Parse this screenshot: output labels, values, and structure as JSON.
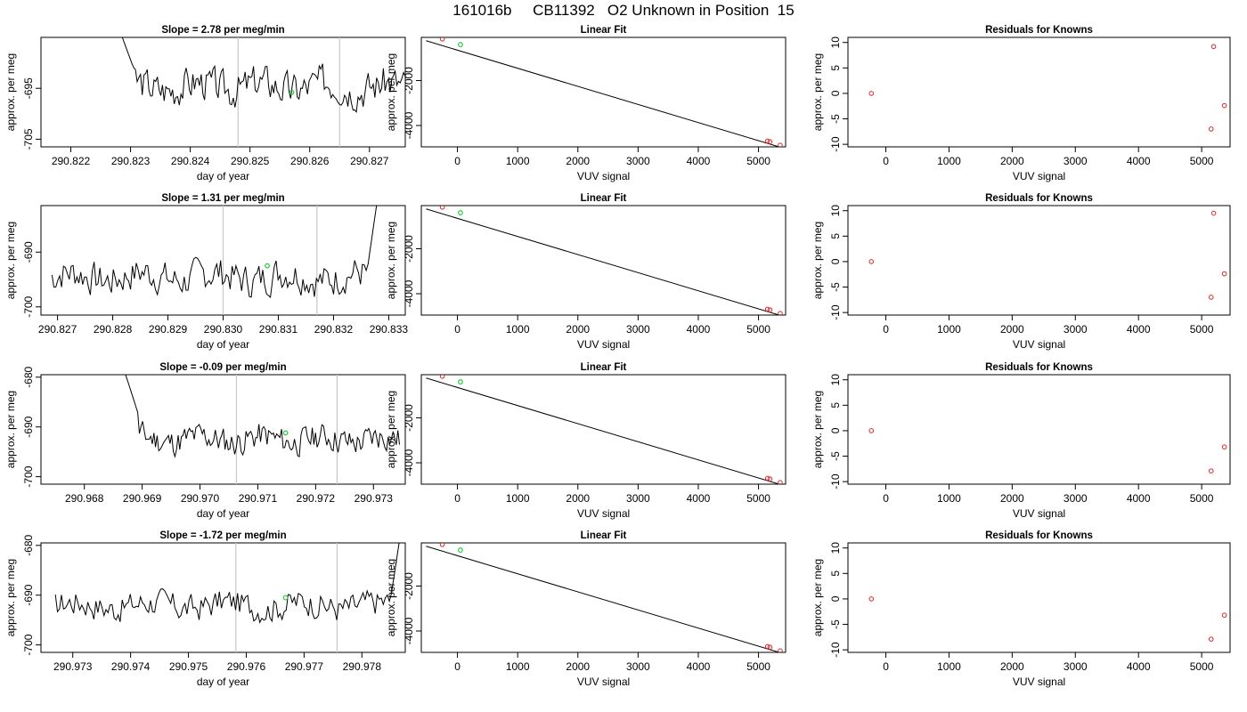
{
  "figure": {
    "title": "161016b     CB11392   O2 Unknown in Position  15"
  },
  "chart_data": [
    {
      "type": "line",
      "panel": "time",
      "title": "Slope =  2.78  per meg/min",
      "xlabel": "day of year",
      "ylabel": "approx. per meg",
      "xlim": [
        290.8215,
        290.8276
      ],
      "ylim": [
        -706.5,
        -685
      ],
      "xticks": [
        290.822,
        290.823,
        290.824,
        290.825,
        290.826,
        290.827
      ],
      "yticks": [
        -705,
        -695
      ],
      "vlines": [
        290.8248,
        290.8265
      ],
      "start": 290.8228,
      "end": 290.8276,
      "mean": -694.5,
      "amp": 2.2,
      "seed": 3,
      "spikes": [
        {
          "x0": 290.8228,
          "x1": 290.82305,
          "y0": -683,
          "y1": -691
        }
      ],
      "marker": {
        "x": 290.8257,
        "y": -695.8
      }
    },
    {
      "type": "scatter",
      "panel": "fit",
      "title": "Linear Fit",
      "xlabel": "VUV signal",
      "ylabel": "approx. per meg",
      "xlim": [
        -600,
        5450
      ],
      "ylim": [
        -4950,
        -80
      ],
      "xticks": [
        0,
        1000,
        2000,
        3000,
        4000,
        5000
      ],
      "yticks": [
        -4000,
        -2000
      ],
      "line": [
        [
          -520,
          -230
        ],
        [
          5380,
          -4980
        ]
      ],
      "points": [
        [
          -250,
          -150
        ],
        [
          5150,
          -4690
        ],
        [
          5190,
          -4720
        ],
        [
          5360,
          -4880
        ]
      ],
      "green": [
        [
          50,
          -400
        ]
      ]
    },
    {
      "type": "scatter",
      "panel": "resid",
      "title": "Residuals for Knowns",
      "xlabel": "VUV signal",
      "ylabel": "approx. per meg",
      "xlim": [
        -600,
        5450
      ],
      "ylim": [
        -10.5,
        11
      ],
      "xticks": [
        0,
        1000,
        2000,
        3000,
        4000,
        5000
      ],
      "yticks": [
        -10,
        -5,
        0,
        5,
        10
      ],
      "points": [
        [
          -230,
          0
        ],
        [
          5190,
          9.2
        ],
        [
          5150,
          -7
        ],
        [
          5360,
          -2.4
        ]
      ]
    },
    {
      "type": "line",
      "panel": "time",
      "title": "Slope =  1.31  per meg/min",
      "xlabel": "day of year",
      "ylabel": "approx. per meg",
      "xlim": [
        290.8267,
        290.8333
      ],
      "ylim": [
        -701.5,
        -681.5
      ],
      "xticks": [
        290.827,
        290.828,
        290.829,
        290.83,
        290.831,
        290.832,
        290.833
      ],
      "yticks": [
        -700,
        -690
      ],
      "vlines": [
        290.83,
        290.8317
      ],
      "start": 290.8269,
      "end": 290.8328,
      "mean": -694.5,
      "amp": 2.0,
      "seed": 7,
      "spikes": [
        {
          "x0": 290.8326,
          "x1": 290.8328,
          "y0": -694,
          "y1": -680
        }
      ],
      "marker": {
        "x": 290.8308,
        "y": -692.5
      }
    },
    {
      "type": "scatter",
      "panel": "fit",
      "title": "Linear Fit",
      "xlabel": "VUV signal",
      "ylabel": "approx. per meg",
      "xlim": [
        -600,
        5450
      ],
      "ylim": [
        -4950,
        -80
      ],
      "xticks": [
        0,
        1000,
        2000,
        3000,
        4000,
        5000
      ],
      "yticks": [
        -4000,
        -2000
      ],
      "line": [
        [
          -520,
          -230
        ],
        [
          5380,
          -4980
        ]
      ],
      "points": [
        [
          -250,
          -150
        ],
        [
          5150,
          -4690
        ],
        [
          5190,
          -4720
        ],
        [
          5360,
          -4880
        ]
      ],
      "green": [
        [
          50,
          -400
        ]
      ]
    },
    {
      "type": "scatter",
      "panel": "resid",
      "title": "Residuals for Knowns",
      "xlabel": "VUV signal",
      "ylabel": "approx. per meg",
      "xlim": [
        -600,
        5450
      ],
      "ylim": [
        -10.5,
        11
      ],
      "xticks": [
        0,
        1000,
        2000,
        3000,
        4000,
        5000
      ],
      "yticks": [
        -10,
        -5,
        0,
        5,
        10
      ],
      "points": [
        [
          -230,
          0
        ],
        [
          5190,
          9.5
        ],
        [
          5150,
          -7
        ],
        [
          5360,
          -2.4
        ]
      ]
    },
    {
      "type": "line",
      "panel": "time",
      "title": "Slope =  -0.09  per meg/min",
      "xlabel": "day of year",
      "ylabel": "approx. per meg",
      "xlim": [
        290.96725,
        290.97355
      ],
      "ylim": [
        -701.5,
        -679.5
      ],
      "xticks": [
        290.968,
        290.969,
        290.97,
        290.971,
        290.972,
        290.973
      ],
      "yticks": [
        -700,
        -690,
        -680
      ],
      "vlines": [
        290.97063,
        290.97237
      ],
      "start": 290.9687,
      "end": 290.97345,
      "mean": -692.5,
      "amp": 1.8,
      "seed": 11,
      "spikes": [
        {
          "x0": 290.9687,
          "x1": 290.96895,
          "y0": -679,
          "y1": -688
        }
      ],
      "marker": {
        "x": 290.97148,
        "y": -691.2
      }
    },
    {
      "type": "scatter",
      "panel": "fit",
      "title": "Linear Fit",
      "xlabel": "VUV signal",
      "ylabel": "approx. per meg",
      "xlim": [
        -600,
        5450
      ],
      "ylim": [
        -4950,
        -80
      ],
      "xticks": [
        0,
        1000,
        2000,
        3000,
        4000,
        5000
      ],
      "yticks": [
        -4000,
        -2000
      ],
      "line": [
        [
          -520,
          -230
        ],
        [
          5380,
          -4980
        ]
      ],
      "points": [
        [
          -250,
          -150
        ],
        [
          5150,
          -4690
        ],
        [
          5190,
          -4720
        ],
        [
          5360,
          -4880
        ]
      ],
      "green": [
        [
          50,
          -400
        ]
      ]
    },
    {
      "type": "scatter",
      "panel": "resid",
      "title": "Residuals for Knowns",
      "xlabel": "VUV signal",
      "ylabel": "approx. per meg",
      "xlim": [
        -600,
        5450
      ],
      "ylim": [
        -10.5,
        11
      ],
      "xticks": [
        0,
        1000,
        2000,
        3000,
        4000,
        5000
      ],
      "yticks": [
        -10,
        -5,
        0,
        5,
        10
      ],
      "points": [
        [
          -230,
          0
        ],
        [
          5150,
          -7.9
        ],
        [
          5360,
          -3.2
        ]
      ]
    },
    {
      "type": "line",
      "panel": "time",
      "title": "Slope =  -1.72  per meg/min",
      "xlabel": "day of year",
      "ylabel": "approx. per meg",
      "xlim": [
        290.97245,
        290.97875
      ],
      "ylim": [
        -701.5,
        -679.5
      ],
      "xticks": [
        290.973,
        290.974,
        290.975,
        290.976,
        290.977,
        290.978
      ],
      "yticks": [
        -700,
        -690,
        -680
      ],
      "vlines": [
        290.97582,
        290.97757
      ],
      "start": 290.9727,
      "end": 290.97865,
      "mean": -692.0,
      "amp": 1.8,
      "seed": 17,
      "spikes": [
        {
          "x0": 290.97848,
          "x1": 290.97865,
          "y0": -692,
          "y1": -679
        }
      ],
      "marker": {
        "x": 290.97668,
        "y": -690.5
      }
    },
    {
      "type": "scatter",
      "panel": "fit",
      "title": "Linear Fit",
      "xlabel": "VUV signal",
      "ylabel": "approx. per meg",
      "xlim": [
        -600,
        5450
      ],
      "ylim": [
        -4950,
        -80
      ],
      "xticks": [
        0,
        1000,
        2000,
        3000,
        4000,
        5000
      ],
      "yticks": [
        -4000,
        -2000
      ],
      "line": [
        [
          -520,
          -230
        ],
        [
          5380,
          -4980
        ]
      ],
      "points": [
        [
          -250,
          -150
        ],
        [
          5150,
          -4690
        ],
        [
          5190,
          -4720
        ],
        [
          5360,
          -4880
        ]
      ],
      "green": [
        [
          50,
          -400
        ]
      ]
    },
    {
      "type": "scatter",
      "panel": "resid",
      "title": "Residuals for Knowns",
      "xlabel": "VUV signal",
      "ylabel": "approx. per meg",
      "xlim": [
        -600,
        5450
      ],
      "ylim": [
        -10.5,
        11
      ],
      "xticks": [
        0,
        1000,
        2000,
        3000,
        4000,
        5000
      ],
      "yticks": [
        -10,
        -5,
        0,
        5,
        10
      ],
      "points": [
        [
          -230,
          0
        ],
        [
          5150,
          -7.9
        ],
        [
          5360,
          -3.2
        ]
      ]
    }
  ],
  "colors": {
    "axis": "#000000",
    "series": "#000000",
    "vline": "#c8c8c8",
    "point": "#d62728",
    "green": "#22c93a"
  }
}
